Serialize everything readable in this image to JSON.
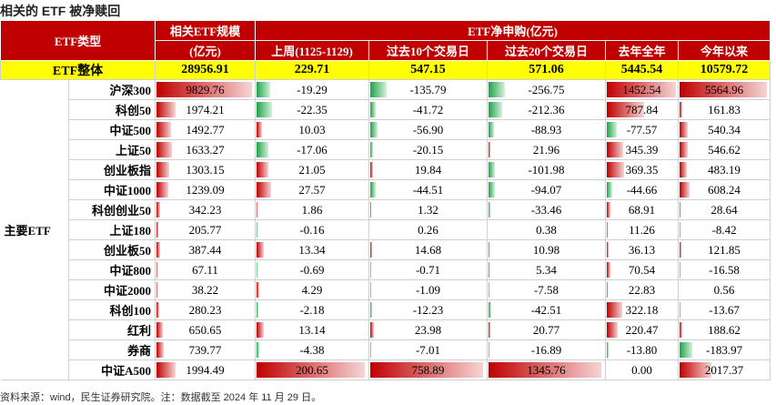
{
  "title": "相关的 ETF 被净赎回",
  "table": {
    "header": {
      "type": "ETF类型",
      "scale": "相关ETF规模",
      "scale_unit": "(亿元)",
      "net": "ETF净申购(亿元)",
      "columns": [
        "上周(1125-1129)",
        "过去10个交易日",
        "过去20个交易日",
        "去年全年",
        "今年以来"
      ]
    },
    "total": {
      "label": "ETF整体",
      "values": [
        "28956.91",
        "229.71",
        "547.15",
        "571.06",
        "5445.54",
        "10579.72"
      ]
    },
    "group": "主要ETF",
    "rows": [
      {
        "name": "沪深300",
        "values": [
          "9829.76",
          "-19.29",
          "-135.79",
          "-256.75",
          "1452.54",
          "5564.96"
        ]
      },
      {
        "name": "科创50",
        "values": [
          "1974.21",
          "-22.35",
          "-41.72",
          "-212.36",
          "787.84",
          "161.83"
        ]
      },
      {
        "name": "中证500",
        "values": [
          "1492.77",
          "10.03",
          "-56.90",
          "-88.93",
          "-77.57",
          "540.34"
        ]
      },
      {
        "name": "上证50",
        "values": [
          "1633.27",
          "-17.06",
          "-20.15",
          "21.96",
          "345.39",
          "546.62"
        ]
      },
      {
        "name": "创业板指",
        "values": [
          "1303.15",
          "21.05",
          "19.84",
          "-101.98",
          "369.35",
          "483.19"
        ]
      },
      {
        "name": "中证1000",
        "values": [
          "1239.09",
          "27.57",
          "-44.51",
          "-94.07",
          "-44.66",
          "608.24"
        ]
      },
      {
        "name": "科创创业50",
        "values": [
          "342.23",
          "1.86",
          "1.32",
          "-33.46",
          "68.91",
          "28.64"
        ]
      },
      {
        "name": "上证180",
        "values": [
          "205.77",
          "-0.16",
          "0.26",
          "0.38",
          "11.26",
          "-8.42"
        ]
      },
      {
        "name": "创业板50",
        "values": [
          "387.44",
          "13.34",
          "14.68",
          "10.98",
          "36.13",
          "121.85"
        ]
      },
      {
        "name": "中证800",
        "values": [
          "67.11",
          "-0.69",
          "-0.71",
          "5.34",
          "70.54",
          "-16.58"
        ]
      },
      {
        "name": "中证2000",
        "values": [
          "38.22",
          "4.29",
          "-1.09",
          "-7.58",
          "22.83",
          "0.56"
        ]
      },
      {
        "name": "科创100",
        "values": [
          "280.23",
          "-2.18",
          "-12.23",
          "-42.51",
          "322.18",
          "-13.67"
        ]
      },
      {
        "name": "红利",
        "values": [
          "650.65",
          "13.14",
          "23.98",
          "20.77",
          "220.47",
          "188.62"
        ]
      },
      {
        "name": "券商",
        "values": [
          "739.77",
          "-4.38",
          "-7.01",
          "-16.89",
          "-13.80",
          "-183.97"
        ]
      },
      {
        "name": "中证A500",
        "values": [
          "1994.49",
          "200.65",
          "758.89",
          "1345.76",
          "0.00",
          "2017.37"
        ]
      }
    ]
  },
  "source": "资料来源：wind，民生证券研究院。注：数据截至 2024 年 11 月 29 日。"
}
